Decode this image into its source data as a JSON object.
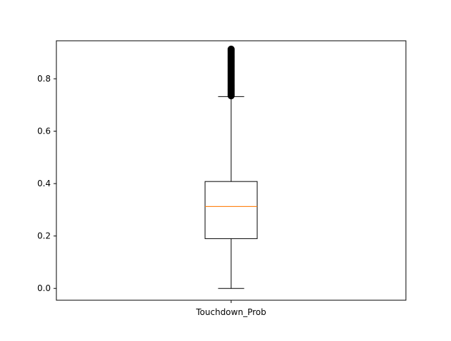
{
  "chart_data": {
    "type": "box",
    "title": "",
    "xlabel": "",
    "ylabel": "",
    "categories": [
      "Touchdown_Prob"
    ],
    "ylim": [
      -0.045,
      0.945
    ],
    "yticks": [
      {
        "value": 0.0,
        "label": "0.0"
      },
      {
        "value": 0.2,
        "label": "0.2"
      },
      {
        "value": 0.4,
        "label": "0.4"
      },
      {
        "value": 0.6,
        "label": "0.6"
      },
      {
        "value": 0.8,
        "label": "0.8"
      }
    ],
    "grid": false,
    "box": {
      "whisker_low": 0.0,
      "q1": 0.19,
      "median": 0.313,
      "q3": 0.408,
      "whisker_high": 0.732,
      "outliers": [
        0.735,
        0.74,
        0.745,
        0.75,
        0.755,
        0.76,
        0.765,
        0.77,
        0.775,
        0.78,
        0.785,
        0.79,
        0.795,
        0.8,
        0.805,
        0.81,
        0.815,
        0.82,
        0.825,
        0.83,
        0.835,
        0.84,
        0.845,
        0.85,
        0.855,
        0.86,
        0.865,
        0.87,
        0.875,
        0.88,
        0.885,
        0.89,
        0.895,
        0.9,
        0.905,
        0.91,
        0.913
      ]
    },
    "colors": {
      "box": "#000000",
      "median": "#ff7f0e",
      "outlier": "#000000"
    }
  }
}
